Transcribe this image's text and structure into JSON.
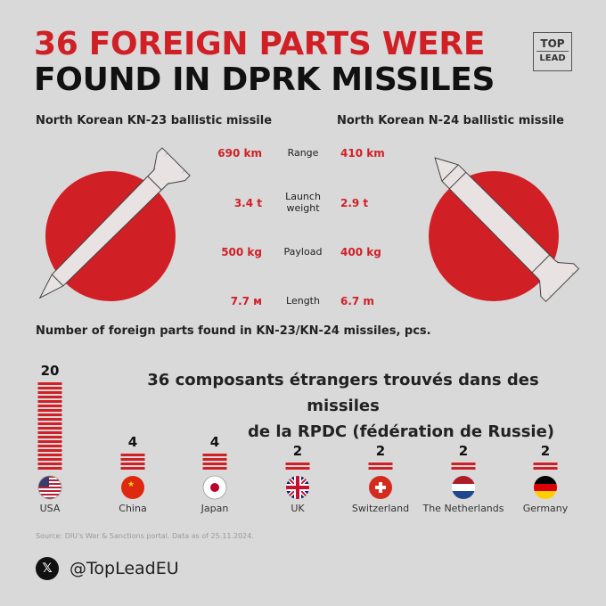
{
  "header": {
    "title_line1": "36 FOREIGN PARTS WERE",
    "title_line2": "FOUND IN DPRK MISSILES",
    "logo_line1": "TOP",
    "logo_line2": "LEAD"
  },
  "missiles": {
    "left_label": "North Korean KN-23 ballistic missile",
    "right_label": "North Korean N-24 ballistic missile"
  },
  "specs": [
    {
      "left": "690 km",
      "name": "Range",
      "right": "410 km"
    },
    {
      "left": "3.4 t",
      "name": "Launch weight",
      "right": "2.9 t"
    },
    {
      "left": "500 kg",
      "name": "Payload",
      "right": "400 kg"
    },
    {
      "left": "7.7 м",
      "name": "Length",
      "right": "6.7 m"
    }
  ],
  "chart_data": {
    "type": "bar",
    "title": "Number of foreign parts found in KN-23/KN-24 missiles, pcs.",
    "categories": [
      "USA",
      "China",
      "Japan",
      "UK",
      "Switzerland",
      "The Netherlands",
      "Germany"
    ],
    "values": [
      20,
      4,
      4,
      2,
      2,
      2,
      2
    ],
    "bar_color": "#d11f26"
  },
  "overlay": {
    "line1": "36 composants étrangers trouvés dans des missiles",
    "line2": "de la RPDC (fédération de  Russie)"
  },
  "footer": {
    "source": "Source: DIU's War & Sanctions portal. Data as of 25.11.2024.",
    "handle": "@TopLeadEU",
    "handle_icon": "x-logo-icon"
  },
  "colors": {
    "accent": "#d11f26",
    "background": "#d9d9d9"
  }
}
